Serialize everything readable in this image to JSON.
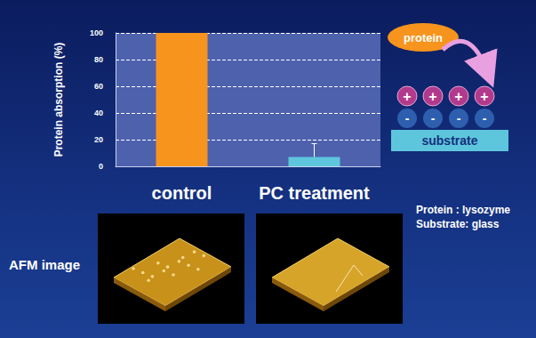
{
  "chart_data": {
    "type": "bar",
    "categories": [
      "control",
      "PC treatment"
    ],
    "values": [
      100,
      7
    ],
    "errors": [
      0,
      10
    ],
    "colors": [
      "#f7941d",
      "#5ec6dc"
    ],
    "ylabel": "Protein absorption (%)",
    "ylim": [
      0,
      100
    ],
    "yticks": [
      0,
      20,
      40,
      60,
      80,
      100
    ],
    "grid": true
  },
  "diagram": {
    "protein": "protein",
    "substrate": "substrate",
    "charges_top": [
      "+",
      "+",
      "+",
      "+"
    ],
    "charges_bottom": [
      "-",
      "-",
      "-",
      "-"
    ]
  },
  "notes": [
    "Protein : lysozyme",
    "Substrate: glass"
  ],
  "afm": {
    "label": "AFM image"
  }
}
